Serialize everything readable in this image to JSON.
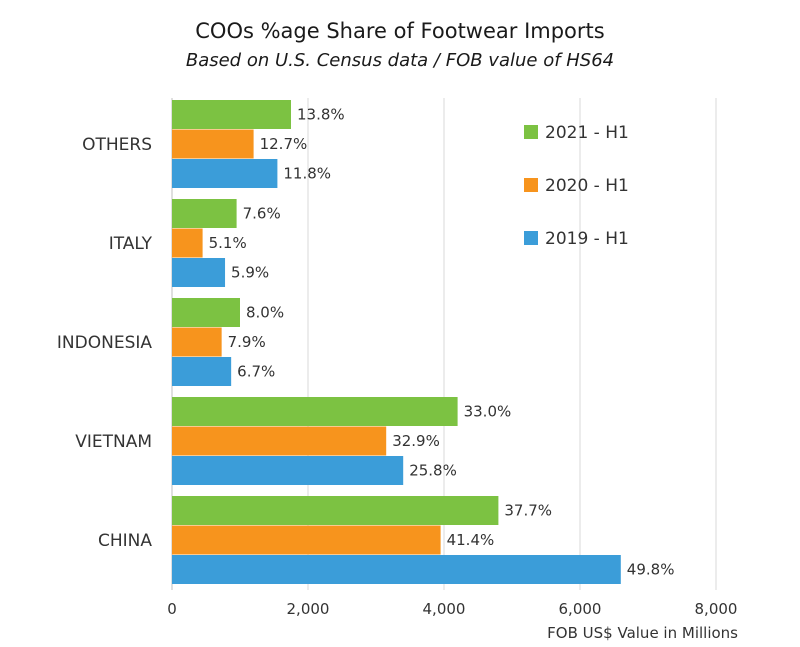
{
  "chart_data": {
    "type": "bar",
    "orientation": "horizontal",
    "title": "COOs %age Share of Footwear Imports",
    "subtitle": "Based on U.S. Census data / FOB value of HS64",
    "xlabel": "FOB US$ Value in Millions",
    "ylabel": "",
    "xlim": [
      0,
      8000
    ],
    "xticks": [
      0,
      2000,
      4000,
      6000,
      8000
    ],
    "xtick_labels": [
      "0",
      "2,000",
      "4,000",
      "6,000",
      "8,000"
    ],
    "grid": true,
    "legend_position": "top-right",
    "categories": [
      "OTHERS",
      "ITALY",
      "INDONESIA",
      "VIETNAM",
      "CHINA"
    ],
    "series": [
      {
        "name": "2021 - H1",
        "color": "#7cc242",
        "values": [
          1750,
          950,
          1000,
          4200,
          4800
        ],
        "labels": [
          "13.8%",
          "7.6%",
          "8.0%",
          "33.0%",
          "37.7%"
        ]
      },
      {
        "name": "2020 - H1",
        "color": "#f7941d",
        "values": [
          1200,
          450,
          730,
          3150,
          3950
        ],
        "labels": [
          "12.7%",
          "5.1%",
          "7.9%",
          "32.9%",
          "41.4%"
        ]
      },
      {
        "name": "2019 - H1",
        "color": "#3b9dd9",
        "values": [
          1550,
          780,
          870,
          3400,
          6600
        ],
        "labels": [
          "11.8%",
          "5.9%",
          "6.7%",
          "25.8%",
          "49.8%"
        ]
      }
    ]
  }
}
